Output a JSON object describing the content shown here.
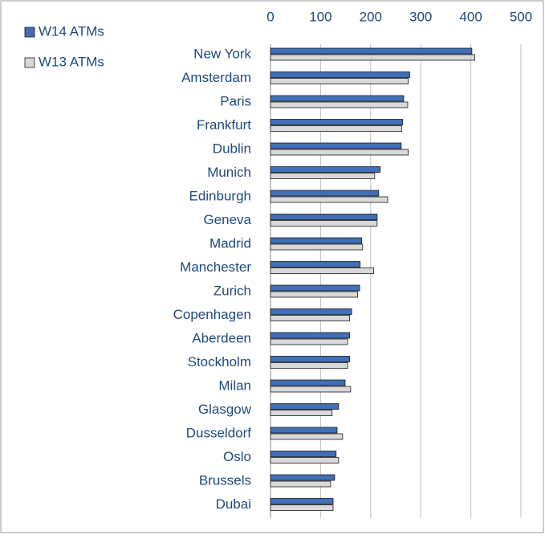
{
  "chart_data": {
    "type": "hbar",
    "categories": [
      "New York",
      "Amsterdam",
      "Paris",
      "Frankfurt",
      "Dublin",
      "Munich",
      "Edinburgh",
      "Geneva",
      "Madrid",
      "Manchester",
      "Zurich",
      "Copenhagen",
      "Aberdeen",
      "Stockholm",
      "Milan",
      "Glasgow",
      "Dusseldorf",
      "Oslo",
      "Brussels",
      "Dubai"
    ],
    "series": [
      {
        "name": "W14 ATMs",
        "color": "#3f6fb8",
        "values": [
          402,
          278,
          266,
          264,
          261,
          219,
          216,
          213,
          182,
          179,
          178,
          162,
          158,
          158,
          149,
          136,
          133,
          131,
          128,
          125
        ]
      },
      {
        "name": "W13 ATMs",
        "color": "#d9d9d9",
        "values": [
          408,
          275,
          274,
          262,
          275,
          208,
          234,
          213,
          184,
          206,
          174,
          158,
          154,
          154,
          160,
          123,
          144,
          136,
          120,
          125
        ]
      }
    ],
    "xlim": [
      0,
      500
    ],
    "xticks": [
      0,
      100,
      200,
      300,
      400,
      500
    ],
    "grid": true,
    "legend": "top-left"
  }
}
